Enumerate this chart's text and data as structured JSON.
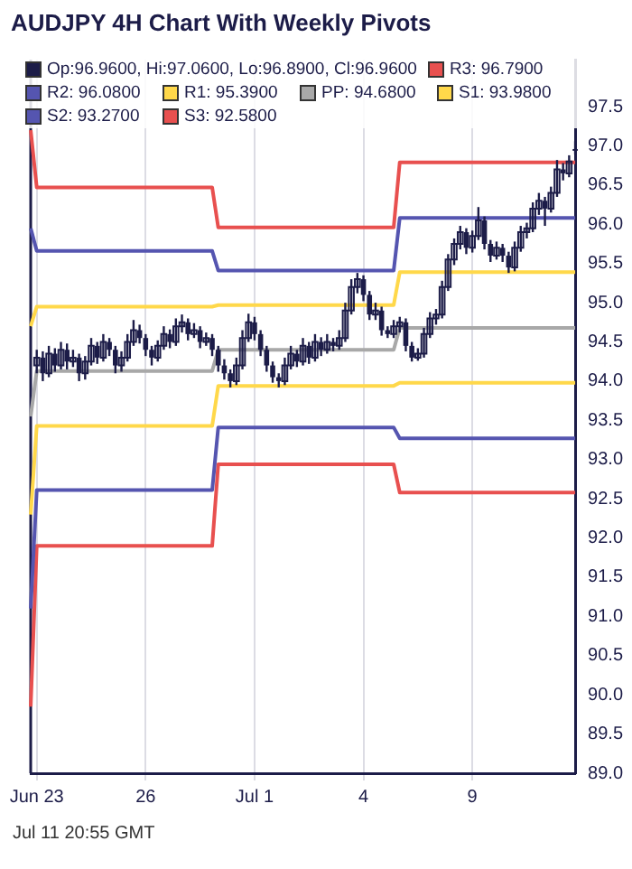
{
  "chart_data": {
    "type": "candlestick",
    "title": "AUDJPY 4H Chart With Weekly Pivots",
    "annotations": [
      "Jul 11 20:55 GMT"
    ],
    "legend": "top",
    "grid": "x",
    "categories": [
      null,
      "Jun 23",
      null,
      null,
      null,
      null,
      null,
      null,
      null,
      null,
      null,
      null,
      null,
      null,
      null,
      null,
      null,
      null,
      null,
      "26",
      null,
      null,
      null,
      null,
      null,
      null,
      null,
      null,
      null,
      null,
      null,
      null,
      null,
      null,
      null,
      null,
      null,
      "Jul 1",
      null,
      null,
      null,
      null,
      null,
      null,
      null,
      null,
      null,
      null,
      null,
      null,
      null,
      null,
      null,
      null,
      null,
      "4",
      null,
      null,
      null,
      null,
      null,
      null,
      null,
      null,
      null,
      null,
      null,
      null,
      null,
      null,
      null,
      null,
      null,
      "9",
      null,
      null,
      null,
      null,
      null,
      null,
      null,
      null,
      null,
      null,
      null,
      null,
      null,
      null,
      null,
      null,
      null
    ],
    "ylim": [
      89,
      98.1
    ],
    "yticks": [
      {
        "value": 89,
        "label": "89.0"
      },
      89.5,
      {
        "value": 90,
        "label": "90.0"
      },
      90.5,
      {
        "value": 91,
        "label": "91.0"
      },
      91.5,
      {
        "value": 92,
        "label": "92.0"
      },
      92.5,
      {
        "value": 93,
        "label": "93.0"
      },
      93.5,
      {
        "value": 94,
        "label": "94.0"
      },
      94.5,
      {
        "value": 95,
        "label": "95.0"
      },
      95.5,
      {
        "value": 96,
        "label": "96.0"
      },
      96.5,
      {
        "value": 97,
        "label": "97.0"
      },
      97.5
    ],
    "series": [
      {
        "name": "Op:96.9600, Hi:97.0600, Lo:96.8900, Cl:96.9600",
        "color": "#1c1c48",
        "ohlc": [
          null,
          [
            94.2,
            94.4,
            94.1,
            94.3
          ],
          [
            94.3,
            94.38,
            94.0,
            94.1
          ],
          [
            94.1,
            94.45,
            94.05,
            94.35
          ],
          [
            94.35,
            94.42,
            94.12,
            94.2
          ],
          [
            94.2,
            94.5,
            94.15,
            94.4
          ],
          [
            94.4,
            94.48,
            94.15,
            94.25
          ],
          [
            94.25,
            94.4,
            94.18,
            94.3
          ],
          [
            94.3,
            94.35,
            94.0,
            94.1
          ],
          [
            94.1,
            94.32,
            94.02,
            94.25
          ],
          [
            94.25,
            94.55,
            94.2,
            94.45
          ],
          [
            94.45,
            94.5,
            94.22,
            94.3
          ],
          [
            94.3,
            94.6,
            94.25,
            94.5
          ],
          [
            94.5,
            94.55,
            94.32,
            94.4
          ],
          [
            94.4,
            94.45,
            94.1,
            94.2
          ],
          [
            94.2,
            94.38,
            94.12,
            94.3
          ],
          [
            94.3,
            94.6,
            94.25,
            94.5
          ],
          [
            94.5,
            94.78,
            94.45,
            94.65
          ],
          [
            94.65,
            94.72,
            94.48,
            94.55
          ],
          [
            94.55,
            94.6,
            94.32,
            94.4
          ],
          [
            94.4,
            94.45,
            94.2,
            94.3
          ],
          [
            94.3,
            94.52,
            94.25,
            94.45
          ],
          [
            94.45,
            94.7,
            94.4,
            94.6
          ],
          [
            94.6,
            94.66,
            94.42,
            94.5
          ],
          [
            94.5,
            94.8,
            94.45,
            94.7
          ],
          [
            94.7,
            94.85,
            94.62,
            94.75
          ],
          [
            94.75,
            94.8,
            94.52,
            94.6
          ],
          [
            94.6,
            94.74,
            94.55,
            94.65
          ],
          [
            94.65,
            94.7,
            94.42,
            94.5
          ],
          [
            94.5,
            94.62,
            94.45,
            94.55
          ],
          [
            94.55,
            94.6,
            94.32,
            94.4
          ],
          [
            94.4,
            94.45,
            94.12,
            94.2
          ],
          [
            94.2,
            94.28,
            94.02,
            94.1
          ],
          [
            94.1,
            94.15,
            93.92,
            94.0
          ],
          [
            94.0,
            94.3,
            93.95,
            94.2
          ],
          [
            94.2,
            94.65,
            94.15,
            94.55
          ],
          [
            94.55,
            94.86,
            94.5,
            94.75
          ],
          [
            94.75,
            94.82,
            94.52,
            94.6
          ],
          [
            94.6,
            94.65,
            94.32,
            94.4
          ],
          [
            94.4,
            94.45,
            94.12,
            94.2
          ],
          [
            94.2,
            94.25,
            93.98,
            94.05
          ],
          [
            94.05,
            94.1,
            93.92,
            94.0
          ],
          [
            94.0,
            94.3,
            93.95,
            94.2
          ],
          [
            94.2,
            94.45,
            94.15,
            94.35
          ],
          [
            94.35,
            94.4,
            94.18,
            94.25
          ],
          [
            94.25,
            94.55,
            94.2,
            94.45
          ],
          [
            94.45,
            94.5,
            94.22,
            94.3
          ],
          [
            94.3,
            94.6,
            94.25,
            94.5
          ],
          [
            94.5,
            94.56,
            94.32,
            94.4
          ],
          [
            94.4,
            94.6,
            94.35,
            94.5
          ],
          [
            94.5,
            94.55,
            94.38,
            94.45
          ],
          [
            94.45,
            94.65,
            94.4,
            94.55
          ],
          [
            94.55,
            95.0,
            94.5,
            94.9
          ],
          [
            94.9,
            95.3,
            94.85,
            95.2
          ],
          [
            95.2,
            95.38,
            95.12,
            95.3
          ],
          [
            95.3,
            95.35,
            95.02,
            95.1
          ],
          [
            95.1,
            95.15,
            94.78,
            94.85
          ],
          [
            94.85,
            95.0,
            94.78,
            94.9
          ],
          [
            94.9,
            94.95,
            94.58,
            94.65
          ],
          [
            94.65,
            94.7,
            94.55,
            94.6
          ],
          [
            94.6,
            94.78,
            94.55,
            94.7
          ],
          [
            94.7,
            94.82,
            94.62,
            94.75
          ],
          [
            94.75,
            94.8,
            94.38,
            94.45
          ],
          [
            94.45,
            94.5,
            94.25,
            94.3
          ],
          [
            94.3,
            94.42,
            94.26,
            94.35
          ],
          [
            94.35,
            94.68,
            94.3,
            94.6
          ],
          [
            94.6,
            94.88,
            94.55,
            94.8
          ],
          [
            94.8,
            94.92,
            94.72,
            94.85
          ],
          [
            94.85,
            95.28,
            94.8,
            95.2
          ],
          [
            95.2,
            95.62,
            95.15,
            95.55
          ],
          [
            95.55,
            95.82,
            95.48,
            95.75
          ],
          [
            95.75,
            95.98,
            95.68,
            95.9
          ],
          [
            95.9,
            95.95,
            95.62,
            95.7
          ],
          [
            95.7,
            95.92,
            95.64,
            95.85
          ],
          [
            95.85,
            96.22,
            95.8,
            96.05
          ],
          [
            96.05,
            96.1,
            95.68,
            95.75
          ],
          [
            95.75,
            95.8,
            95.52,
            95.6
          ],
          [
            95.6,
            95.78,
            95.55,
            95.7
          ],
          [
            95.7,
            95.75,
            95.52,
            95.6
          ],
          [
            95.6,
            95.65,
            95.38,
            95.45
          ],
          [
            95.45,
            95.78,
            95.4,
            95.7
          ],
          [
            95.7,
            95.98,
            95.65,
            95.9
          ],
          [
            95.9,
            96.02,
            95.82,
            95.95
          ],
          [
            95.95,
            96.28,
            95.9,
            96.2
          ],
          [
            96.2,
            96.4,
            96.12,
            96.3
          ],
          [
            96.3,
            96.35,
            95.98,
            96.2
          ],
          [
            96.2,
            96.48,
            96.15,
            96.4
          ],
          [
            96.4,
            96.82,
            96.35,
            96.7
          ],
          [
            96.7,
            96.78,
            96.56,
            96.65
          ],
          [
            96.65,
            96.88,
            96.6,
            96.8
          ],
          [
            96.96,
            97.06,
            96.89,
            96.96
          ]
        ]
      },
      {
        "name": "R3: 96.7900",
        "type": "line",
        "color": "#e8504f",
        "values": [
          97.2,
          96.47,
          96.47,
          96.47,
          96.47,
          96.47,
          96.47,
          96.47,
          96.47,
          96.47,
          96.47,
          96.47,
          96.47,
          96.47,
          96.47,
          96.47,
          96.47,
          96.47,
          96.47,
          96.47,
          96.47,
          96.47,
          96.47,
          96.47,
          96.47,
          96.47,
          96.47,
          96.47,
          96.47,
          96.47,
          96.47,
          95.96,
          95.96,
          95.96,
          95.96,
          95.96,
          95.96,
          95.96,
          95.96,
          95.96,
          95.96,
          95.96,
          95.96,
          95.96,
          95.96,
          95.96,
          95.96,
          95.96,
          95.96,
          95.96,
          95.96,
          95.96,
          95.96,
          95.96,
          95.96,
          95.96,
          95.96,
          95.96,
          95.96,
          95.96,
          95.96,
          96.79,
          96.79,
          96.79,
          96.79,
          96.79,
          96.79,
          96.79,
          96.79,
          96.79,
          96.79,
          96.79,
          96.79,
          96.79,
          96.79,
          96.79,
          96.79,
          96.79,
          96.79,
          96.79,
          96.79,
          96.79,
          96.79,
          96.79,
          96.79,
          96.79,
          96.79,
          96.79,
          96.79,
          96.79,
          96.79
        ]
      },
      {
        "name": "R2: 96.0800",
        "type": "line",
        "color": "#5555b0",
        "values": [
          95.95,
          95.66,
          95.66,
          95.66,
          95.66,
          95.66,
          95.66,
          95.66,
          95.66,
          95.66,
          95.66,
          95.66,
          95.66,
          95.66,
          95.66,
          95.66,
          95.66,
          95.66,
          95.66,
          95.66,
          95.66,
          95.66,
          95.66,
          95.66,
          95.66,
          95.66,
          95.66,
          95.66,
          95.66,
          95.66,
          95.66,
          95.41,
          95.41,
          95.41,
          95.41,
          95.41,
          95.41,
          95.41,
          95.41,
          95.41,
          95.41,
          95.41,
          95.41,
          95.41,
          95.41,
          95.41,
          95.41,
          95.41,
          95.41,
          95.41,
          95.41,
          95.41,
          95.41,
          95.41,
          95.41,
          95.41,
          95.41,
          95.41,
          95.41,
          95.41,
          95.41,
          96.08,
          96.08,
          96.08,
          96.08,
          96.08,
          96.08,
          96.08,
          96.08,
          96.08,
          96.08,
          96.08,
          96.08,
          96.08,
          96.08,
          96.08,
          96.08,
          96.08,
          96.08,
          96.08,
          96.08,
          96.08,
          96.08,
          96.08,
          96.08,
          96.08,
          96.08,
          96.08,
          96.08,
          96.08,
          96.08
        ]
      },
      {
        "name": "R1: 95.3900",
        "type": "line",
        "color": "#ffd84a",
        "values": [
          94.7,
          94.95,
          94.95,
          94.95,
          94.95,
          94.95,
          94.95,
          94.95,
          94.95,
          94.95,
          94.95,
          94.95,
          94.95,
          94.95,
          94.95,
          94.95,
          94.95,
          94.95,
          94.95,
          94.95,
          94.95,
          94.95,
          94.95,
          94.95,
          94.95,
          94.95,
          94.95,
          94.95,
          94.95,
          94.95,
          94.95,
          94.97,
          94.97,
          94.97,
          94.97,
          94.97,
          94.97,
          94.97,
          94.97,
          94.97,
          94.97,
          94.97,
          94.97,
          94.97,
          94.97,
          94.97,
          94.97,
          94.97,
          94.97,
          94.97,
          94.97,
          94.97,
          94.97,
          94.97,
          94.97,
          94.97,
          94.97,
          94.97,
          94.97,
          94.97,
          94.97,
          95.39,
          95.39,
          95.39,
          95.39,
          95.39,
          95.39,
          95.39,
          95.39,
          95.39,
          95.39,
          95.39,
          95.39,
          95.39,
          95.39,
          95.39,
          95.39,
          95.39,
          95.39,
          95.39,
          95.39,
          95.39,
          95.39,
          95.39,
          95.39,
          95.39,
          95.39,
          95.39,
          95.39,
          95.39,
          95.39
        ]
      },
      {
        "name": "PP: 94.6800",
        "type": "line",
        "color": "#a8a8a8",
        "values": [
          93.55,
          94.13,
          94.13,
          94.13,
          94.13,
          94.13,
          94.13,
          94.13,
          94.13,
          94.13,
          94.13,
          94.13,
          94.13,
          94.13,
          94.13,
          94.13,
          94.13,
          94.13,
          94.13,
          94.13,
          94.13,
          94.13,
          94.13,
          94.13,
          94.13,
          94.13,
          94.13,
          94.13,
          94.13,
          94.13,
          94.13,
          94.4,
          94.4,
          94.4,
          94.4,
          94.4,
          94.4,
          94.4,
          94.4,
          94.4,
          94.4,
          94.4,
          94.4,
          94.4,
          94.4,
          94.4,
          94.4,
          94.4,
          94.4,
          94.4,
          94.4,
          94.4,
          94.4,
          94.4,
          94.4,
          94.4,
          94.4,
          94.4,
          94.4,
          94.4,
          94.4,
          94.68,
          94.68,
          94.68,
          94.68,
          94.68,
          94.68,
          94.68,
          94.68,
          94.68,
          94.68,
          94.68,
          94.68,
          94.68,
          94.68,
          94.68,
          94.68,
          94.68,
          94.68,
          94.68,
          94.68,
          94.68,
          94.68,
          94.68,
          94.68,
          94.68,
          94.68,
          94.68,
          94.68,
          94.68,
          94.68
        ]
      },
      {
        "name": "S1: 93.9800",
        "type": "line",
        "color": "#ffd84a",
        "values": [
          92.3,
          93.43,
          93.43,
          93.43,
          93.43,
          93.43,
          93.43,
          93.43,
          93.43,
          93.43,
          93.43,
          93.43,
          93.43,
          93.43,
          93.43,
          93.43,
          93.43,
          93.43,
          93.43,
          93.43,
          93.43,
          93.43,
          93.43,
          93.43,
          93.43,
          93.43,
          93.43,
          93.43,
          93.43,
          93.43,
          93.43,
          93.94,
          93.94,
          93.94,
          93.94,
          93.94,
          93.94,
          93.94,
          93.94,
          93.94,
          93.94,
          93.94,
          93.94,
          93.94,
          93.94,
          93.94,
          93.94,
          93.94,
          93.94,
          93.94,
          93.94,
          93.94,
          93.94,
          93.94,
          93.94,
          93.94,
          93.94,
          93.94,
          93.94,
          93.94,
          93.94,
          93.98,
          93.98,
          93.98,
          93.98,
          93.98,
          93.98,
          93.98,
          93.98,
          93.98,
          93.98,
          93.98,
          93.98,
          93.98,
          93.98,
          93.98,
          93.98,
          93.98,
          93.98,
          93.98,
          93.98,
          93.98,
          93.98,
          93.98,
          93.98,
          93.98,
          93.98,
          93.98,
          93.98,
          93.98,
          93.98
        ]
      },
      {
        "name": "S2: 93.2700",
        "type": "line",
        "color": "#5555b0",
        "values": [
          91.1,
          92.61,
          92.61,
          92.61,
          92.61,
          92.61,
          92.61,
          92.61,
          92.61,
          92.61,
          92.61,
          92.61,
          92.61,
          92.61,
          92.61,
          92.61,
          92.61,
          92.61,
          92.61,
          92.61,
          92.61,
          92.61,
          92.61,
          92.61,
          92.61,
          92.61,
          92.61,
          92.61,
          92.61,
          92.61,
          92.61,
          93.41,
          93.41,
          93.41,
          93.41,
          93.41,
          93.41,
          93.41,
          93.41,
          93.41,
          93.41,
          93.41,
          93.41,
          93.41,
          93.41,
          93.41,
          93.41,
          93.41,
          93.41,
          93.41,
          93.41,
          93.41,
          93.41,
          93.41,
          93.41,
          93.41,
          93.41,
          93.41,
          93.41,
          93.41,
          93.41,
          93.27,
          93.27,
          93.27,
          93.27,
          93.27,
          93.27,
          93.27,
          93.27,
          93.27,
          93.27,
          93.27,
          93.27,
          93.27,
          93.27,
          93.27,
          93.27,
          93.27,
          93.27,
          93.27,
          93.27,
          93.27,
          93.27,
          93.27,
          93.27,
          93.27,
          93.27,
          93.27,
          93.27,
          93.27,
          93.27
        ]
      },
      {
        "name": "S3: 92.5800",
        "type": "line",
        "color": "#e8504f",
        "values": [
          89.85,
          91.9,
          91.9,
          91.9,
          91.9,
          91.9,
          91.9,
          91.9,
          91.9,
          91.9,
          91.9,
          91.9,
          91.9,
          91.9,
          91.9,
          91.9,
          91.9,
          91.9,
          91.9,
          91.9,
          91.9,
          91.9,
          91.9,
          91.9,
          91.9,
          91.9,
          91.9,
          91.9,
          91.9,
          91.9,
          91.9,
          92.94,
          92.94,
          92.94,
          92.94,
          92.94,
          92.94,
          92.94,
          92.94,
          92.94,
          92.94,
          92.94,
          92.94,
          92.94,
          92.94,
          92.94,
          92.94,
          92.94,
          92.94,
          92.94,
          92.94,
          92.94,
          92.94,
          92.94,
          92.94,
          92.94,
          92.94,
          92.94,
          92.94,
          92.94,
          92.94,
          92.58,
          92.58,
          92.58,
          92.58,
          92.58,
          92.58,
          92.58,
          92.58,
          92.58,
          92.58,
          92.58,
          92.58,
          92.58,
          92.58,
          92.58,
          92.58,
          92.58,
          92.58,
          92.58,
          92.58,
          92.58,
          92.58,
          92.58,
          92.58,
          92.58,
          92.58,
          92.58,
          92.58,
          92.58,
          92.58
        ]
      }
    ]
  }
}
